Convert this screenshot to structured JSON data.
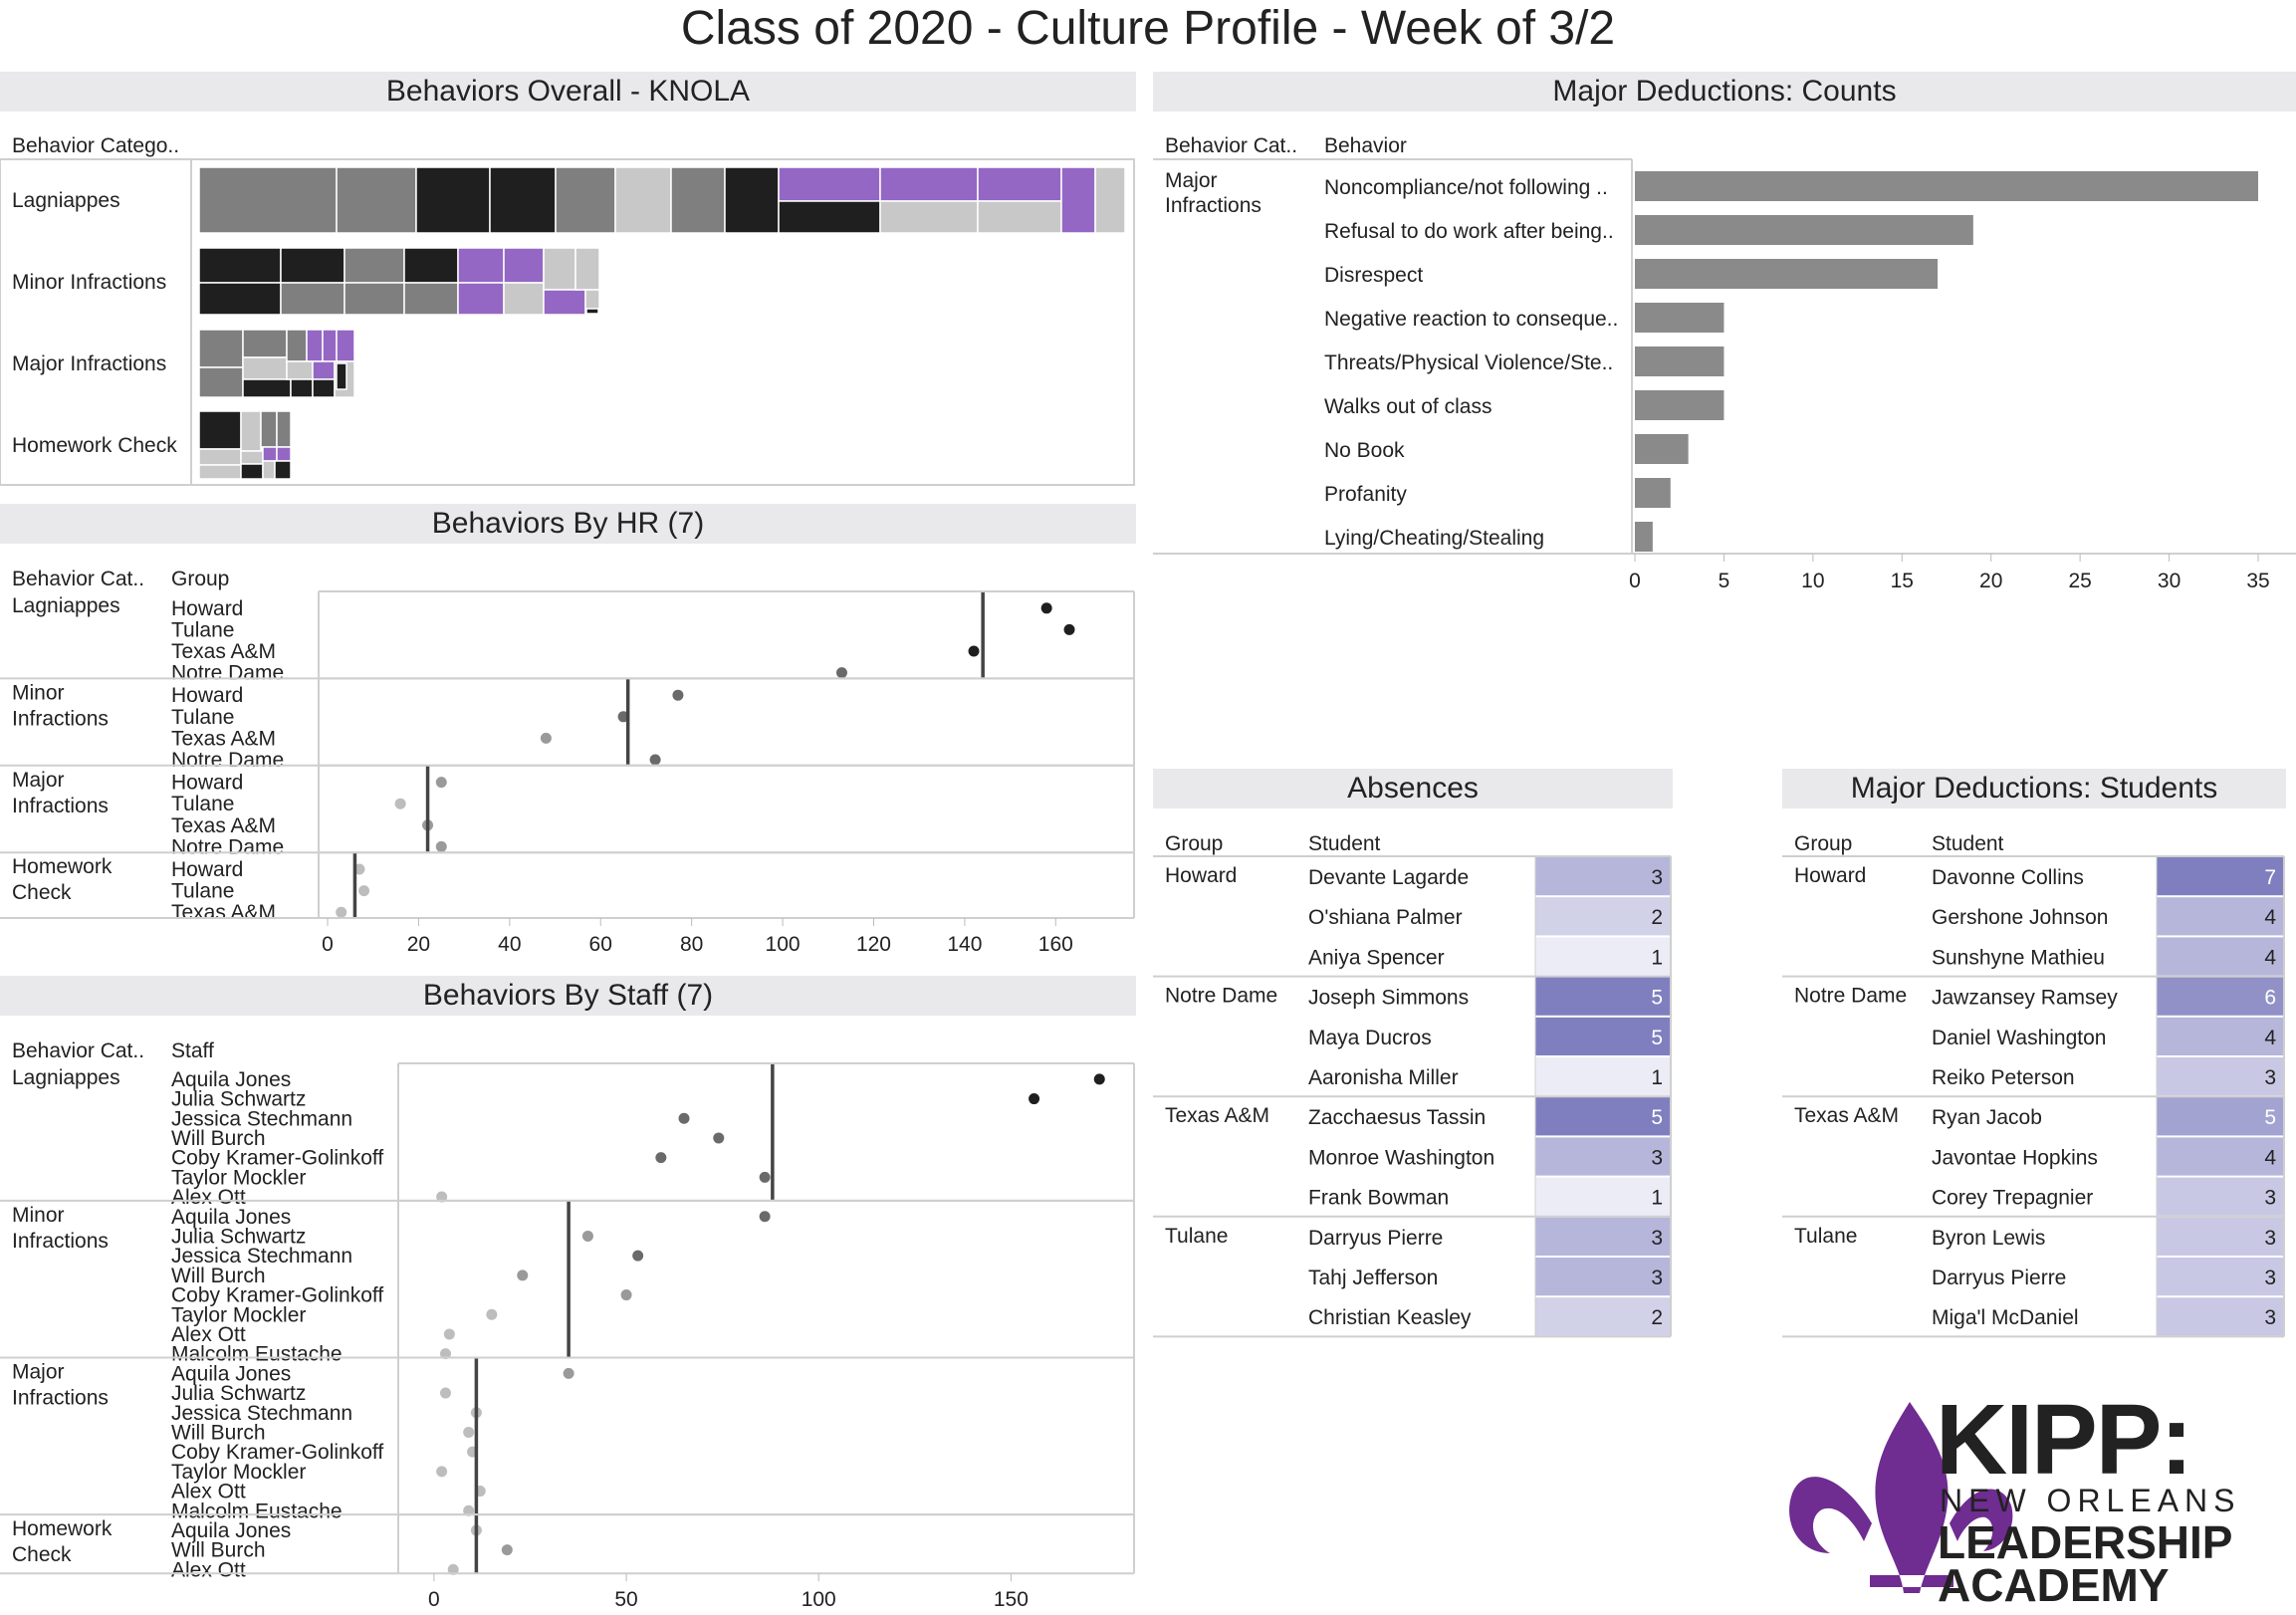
{
  "title": "Class of 2020 - Culture Profile - Week of 3/2",
  "colors": {
    "black": "#1f1f1f",
    "dark_gray": "#7f7f7f",
    "light_gray": "#c8c8c8",
    "purple": "#9467c4",
    "panel_bg": "#e9e9ec",
    "heat_low": "#ececf6",
    "heat_high": "#7f7fbf"
  },
  "behaviors_overall": {
    "title": "Behaviors Overall - KNOLA",
    "col_header": "Behavior Catego..",
    "categories": [
      "Lagniappes",
      "Minor Infractions",
      "Major Infractions",
      "Homework Check"
    ]
  },
  "major_counts": {
    "title": "Major Deductions: Counts",
    "col_header_1": "Behavior Cat..",
    "col_header_2": "Behavior",
    "category_label": "Major Infractions",
    "chart_data": {
      "type": "bar",
      "orientation": "horizontal",
      "categories": [
        "Noncompliance/not following ..",
        "Refusal to do work after being..",
        "Disrespect",
        "Negative reaction to conseque..",
        "Threats/Physical Violence/Ste..",
        "Walks out of class",
        "No Book",
        "Profanity",
        "Lying/Cheating/Stealing"
      ],
      "values": [
        35,
        19,
        17,
        5,
        5,
        5,
        3,
        2,
        1
      ],
      "xlim": [
        0,
        35
      ],
      "xticks": [
        0,
        5,
        10,
        15,
        20,
        25,
        30,
        35
      ]
    }
  },
  "by_hr": {
    "title": "Behaviors By HR (7)",
    "col_header_1": "Behavior Cat..",
    "col_header_2": "Group",
    "chart_data": {
      "type": "scatter",
      "xlim": [
        0,
        170
      ],
      "xticks": [
        0,
        20,
        40,
        60,
        80,
        100,
        120,
        140,
        160
      ],
      "panels": [
        {
          "category": "Lagniappes",
          "groups": [
            "Howard",
            "Tulane",
            "Texas A&M",
            "Notre Dame"
          ],
          "values": [
            158,
            163,
            142,
            113
          ],
          "reference": 144
        },
        {
          "category": "Minor Infractions",
          "groups": [
            "Howard",
            "Tulane",
            "Texas A&M",
            "Notre Dame"
          ],
          "values": [
            77,
            65,
            48,
            72
          ],
          "reference": 66
        },
        {
          "category": "Major Infractions",
          "groups": [
            "Howard",
            "Tulane",
            "Texas A&M",
            "Notre Dame"
          ],
          "values": [
            25,
            16,
            22,
            25
          ],
          "reference": 22
        },
        {
          "category": "Homework Check",
          "groups": [
            "Howard",
            "Tulane",
            "Texas A&M"
          ],
          "values": [
            7,
            8,
            3
          ],
          "reference": 6
        }
      ]
    }
  },
  "by_staff": {
    "title": "Behaviors By Staff (7)",
    "col_header_1": "Behavior Cat..",
    "col_header_2": "Staff",
    "chart_data": {
      "type": "scatter",
      "xlim": [
        -8,
        182
      ],
      "xticks": [
        0,
        50,
        100,
        150
      ],
      "panels": [
        {
          "category": "Lagniappes",
          "staff": [
            "Aquila Jones",
            "Julia Schwartz",
            "Jessica Stechmann",
            "Will Burch",
            "Coby Kramer-Golinkoff",
            "Taylor Mockler",
            "Alex Ott"
          ],
          "values": [
            173,
            156,
            65,
            74,
            59,
            86,
            2
          ],
          "reference": 88
        },
        {
          "category": "Minor Infractions",
          "staff": [
            "Aquila Jones",
            "Julia Schwartz",
            "Jessica Stechmann",
            "Will Burch",
            "Coby Kramer-Golinkoff",
            "Taylor Mockler",
            "Alex Ott",
            "Malcolm Eustache"
          ],
          "values": [
            86,
            40,
            53,
            23,
            50,
            15,
            4,
            3
          ],
          "reference": 35
        },
        {
          "category": "Major Infractions",
          "staff": [
            "Aquila Jones",
            "Julia Schwartz",
            "Jessica Stechmann",
            "Will Burch",
            "Coby Kramer-Golinkoff",
            "Taylor Mockler",
            "Alex Ott",
            "Malcolm Eustache"
          ],
          "values": [
            35,
            3,
            11,
            9,
            10,
            2,
            12,
            9
          ],
          "reference": 11
        },
        {
          "category": "Homework Check",
          "staff": [
            "Aquila Jones",
            "Will Burch",
            "Alex Ott"
          ],
          "values": [
            11,
            19,
            5
          ],
          "reference": 11
        }
      ]
    }
  },
  "absences": {
    "title": "Absences",
    "col_header_1": "Group",
    "col_header_2": "Student",
    "groups": [
      {
        "group": "Howard",
        "rows": [
          {
            "student": "Devante Lagarde",
            "value": 3
          },
          {
            "student": "O'shiana Palmer",
            "value": 2
          },
          {
            "student": "Aniya Spencer",
            "value": 1
          }
        ]
      },
      {
        "group": "Notre Dame",
        "rows": [
          {
            "student": "Joseph Simmons",
            "value": 5
          },
          {
            "student": "Maya Ducros",
            "value": 5
          },
          {
            "student": "Aaronisha Miller",
            "value": 1
          }
        ]
      },
      {
        "group": "Texas A&M",
        "rows": [
          {
            "student": "Zacchaesus Tassin",
            "value": 5
          },
          {
            "student": "Monroe Washington",
            "value": 3
          },
          {
            "student": "Frank Bowman",
            "value": 1
          }
        ]
      },
      {
        "group": "Tulane",
        "rows": [
          {
            "student": "Darryus Pierre",
            "value": 3
          },
          {
            "student": "Tahj Jefferson",
            "value": 3
          },
          {
            "student": "Christian Keasley",
            "value": 2
          }
        ]
      }
    ]
  },
  "major_students": {
    "title": "Major Deductions: Students",
    "col_header_1": "Group",
    "col_header_2": "Student",
    "groups": [
      {
        "group": "Howard",
        "rows": [
          {
            "student": "Davonne Collins",
            "value": 7
          },
          {
            "student": "Gershone Johnson",
            "value": 4
          },
          {
            "student": "Sunshyne Mathieu",
            "value": 4
          }
        ]
      },
      {
        "group": "Notre Dame",
        "rows": [
          {
            "student": "Jawzansey Ramsey",
            "value": 6
          },
          {
            "student": "Daniel Washington",
            "value": 4
          },
          {
            "student": "Reiko Peterson",
            "value": 3
          }
        ]
      },
      {
        "group": "Texas A&M",
        "rows": [
          {
            "student": "Ryan Jacob",
            "value": 5
          },
          {
            "student": "Javontae Hopkins",
            "value": 4
          },
          {
            "student": "Corey Trepagnier",
            "value": 3
          }
        ]
      },
      {
        "group": "Tulane",
        "rows": [
          {
            "student": "Byron Lewis",
            "value": 3
          },
          {
            "student": "Darryus Pierre",
            "value": 3
          },
          {
            "student": "Miga'l McDaniel",
            "value": 3
          }
        ]
      }
    ]
  },
  "logo": {
    "line1": "KIPP:",
    "line2": "NEW ORLEANS",
    "line3": "LEADERSHIP",
    "line4": "ACADEMY"
  }
}
